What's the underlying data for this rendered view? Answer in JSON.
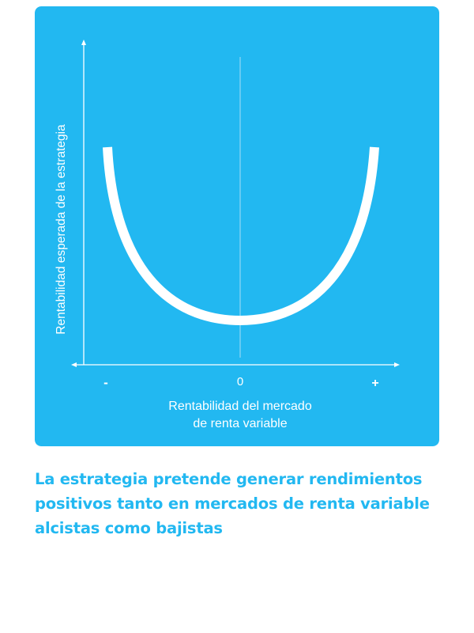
{
  "colors": {
    "card_background": "#22b8f1",
    "foreground": "#ffffff",
    "center_line": "#8fd6f5",
    "caption": "#22b8f1"
  },
  "diagram": {
    "y_axis_label": "Rentabilidad esperada de la estrategia",
    "x_axis_label_line1": "Rentabilidad del mercado",
    "x_axis_label_line2": "de renta variable",
    "tick_minus": "-",
    "tick_zero": "0",
    "tick_plus": "+"
  },
  "caption": "La estrategia pretende generar rendimientos positivos tanto en mercados de renta variable alcistas como bajistas"
}
